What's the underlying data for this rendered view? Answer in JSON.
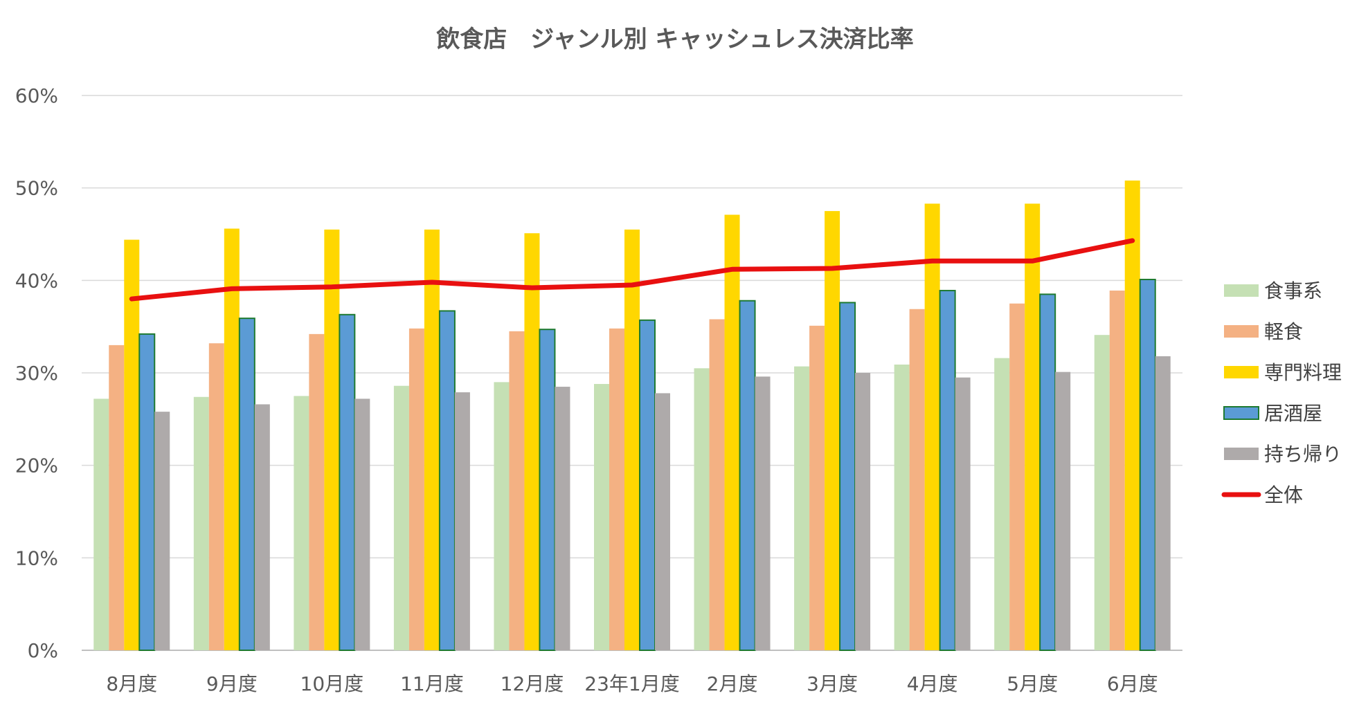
{
  "chart_data": {
    "type": "bar",
    "title": "飲食店　ジャンル別 キャッシュレス決済比率",
    "xlabel": "",
    "ylabel": "",
    "ylim": [
      0,
      0.6
    ],
    "yticks": [
      0,
      0.1,
      0.2,
      0.3,
      0.4,
      0.5,
      0.6
    ],
    "ytick_labels": [
      "0%",
      "10%",
      "20%",
      "30%",
      "40%",
      "50%",
      "60%"
    ],
    "categories": [
      "8月度",
      "9月度",
      "10月度",
      "11月度",
      "12月度",
      "23年1月度",
      "2月度",
      "3月度",
      "4月度",
      "5月度",
      "6月度"
    ],
    "series": [
      {
        "name": "食事系",
        "kind": "bar",
        "color": "#c5e0b4",
        "values": [
          0.272,
          0.274,
          0.275,
          0.286,
          0.29,
          0.288,
          0.305,
          0.307,
          0.309,
          0.316,
          0.341
        ]
      },
      {
        "name": "軽食",
        "kind": "bar",
        "color": "#f4b183",
        "values": [
          0.33,
          0.332,
          0.342,
          0.348,
          0.345,
          0.348,
          0.358,
          0.351,
          0.369,
          0.375,
          0.389
        ]
      },
      {
        "name": "専門料理",
        "kind": "bar",
        "color": "#ffd700",
        "values": [
          0.444,
          0.456,
          0.455,
          0.455,
          0.451,
          0.455,
          0.471,
          0.475,
          0.483,
          0.483,
          0.508
        ]
      },
      {
        "name": "居酒屋",
        "kind": "bar",
        "color": "#5b9bd5",
        "border": "#1e7a30",
        "values": [
          0.342,
          0.359,
          0.363,
          0.367,
          0.347,
          0.357,
          0.378,
          0.376,
          0.389,
          0.385,
          0.401
        ]
      },
      {
        "name": "持ち帰り",
        "kind": "bar",
        "color": "#aeaaaa",
        "values": [
          0.258,
          0.266,
          0.272,
          0.279,
          0.285,
          0.278,
          0.296,
          0.3,
          0.295,
          0.301,
          0.318
        ]
      },
      {
        "name": "全体",
        "kind": "line",
        "color": "#e81010",
        "values": [
          0.38,
          0.391,
          0.393,
          0.398,
          0.392,
          0.395,
          0.412,
          0.413,
          0.421,
          0.421,
          0.443
        ]
      }
    ],
    "legend_position": "right",
    "grid": true
  }
}
